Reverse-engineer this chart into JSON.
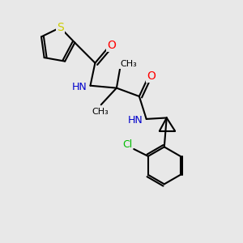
{
  "bg_color": "#e8e8e8",
  "atom_colors": {
    "C": "#000000",
    "N": "#0000cc",
    "O": "#ff0000",
    "S": "#cccc00",
    "H": "#000000",
    "Cl": "#00bb00"
  },
  "bond_color": "#000000",
  "font_size": 9,
  "figsize": [
    3.0,
    3.0
  ],
  "dpi": 100,
  "xlim": [
    0,
    10
  ],
  "ylim": [
    0,
    10
  ]
}
